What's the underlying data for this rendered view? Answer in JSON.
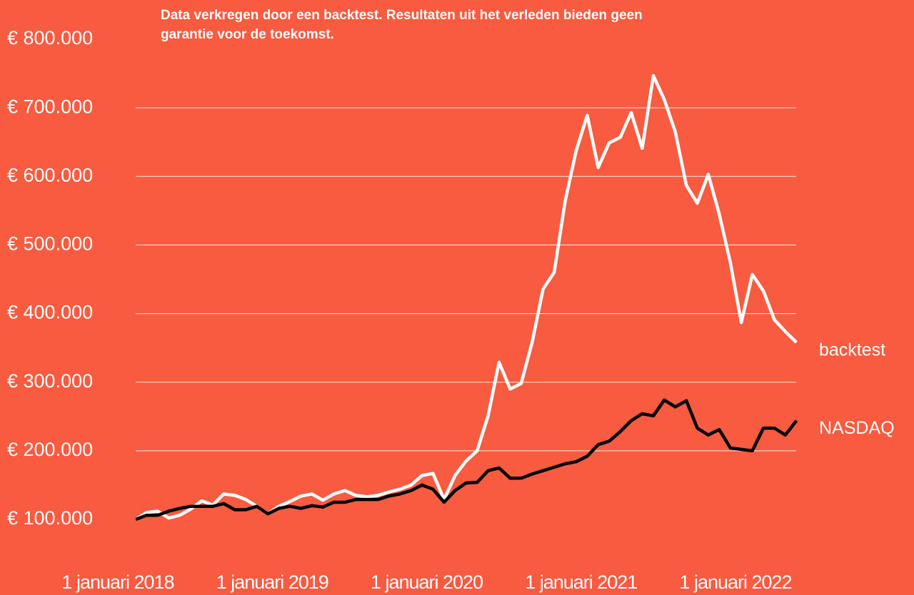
{
  "chart_data": {
    "type": "line",
    "annotation": "Data verkregen door een backtest. Resultaten uit het verleden bieden geen garantie voor de toekomst.",
    "x": [
      2018.116,
      2018.187,
      2018.258,
      2018.33,
      2018.401,
      2018.472,
      2018.544,
      2018.615,
      2018.686,
      2018.758,
      2018.829,
      2018.9,
      2018.972,
      2019.043,
      2019.114,
      2019.186,
      2019.257,
      2019.328,
      2019.399,
      2019.471,
      2019.542,
      2019.613,
      2019.685,
      2019.756,
      2019.827,
      2019.899,
      2019.97,
      2020.041,
      2020.113,
      2020.184,
      2020.255,
      2020.327,
      2020.398,
      2020.469,
      2020.541,
      2020.612,
      2020.683,
      2020.754,
      2020.826,
      2020.897,
      2020.968,
      2021.04,
      2021.111,
      2021.182,
      2021.254,
      2021.325,
      2021.396,
      2021.468,
      2021.539,
      2021.61,
      2021.682,
      2021.753,
      2021.824,
      2021.895,
      2021.967,
      2022.038,
      2022.109,
      2022.181,
      2022.252,
      2022.323,
      2022.395
    ],
    "series": [
      {
        "name": "backtest",
        "color": "#ffffff",
        "values": [
          100000,
          110000,
          112000,
          102000,
          106000,
          115000,
          127000,
          121000,
          137000,
          135000,
          129000,
          119000,
          108000,
          119000,
          126000,
          134000,
          137000,
          128000,
          137000,
          142000,
          135000,
          133000,
          135000,
          140000,
          144000,
          150000,
          164000,
          167000,
          129000,
          164000,
          185000,
          200000,
          251000,
          329000,
          290000,
          298000,
          358000,
          436000,
          460000,
          564000,
          637000,
          689000,
          613000,
          649000,
          657000,
          693000,
          641000,
          747000,
          712000,
          665000,
          587000,
          561000,
          603000,
          545000,
          474000,
          387000,
          457000,
          433000,
          391000,
          374000,
          358000
        ]
      },
      {
        "name": "NASDAQ",
        "color": "#000000",
        "values": [
          100000,
          106000,
          106000,
          112000,
          116000,
          119000,
          119000,
          119000,
          123000,
          114000,
          114000,
          119000,
          108000,
          116000,
          119000,
          116000,
          120000,
          118000,
          125000,
          125000,
          129000,
          129000,
          129000,
          134000,
          137000,
          142000,
          150000,
          144000,
          125000,
          142000,
          153000,
          154000,
          171000,
          175000,
          160000,
          160000,
          166000,
          171000,
          176000,
          181000,
          184000,
          192000,
          209000,
          214000,
          228000,
          244000,
          254000,
          251000,
          274000,
          264000,
          273000,
          233000,
          223000,
          231000,
          204000,
          202000,
          200000,
          233000,
          233000,
          223000,
          244000
        ]
      }
    ],
    "xlim": [
      2017.9,
      2022.5
    ],
    "xticks": [
      {
        "value": 2018,
        "label": "1 januari 2018"
      },
      {
        "value": 2019,
        "label": "1 januari 2019"
      },
      {
        "value": 2020,
        "label": "1 januari 2020"
      },
      {
        "value": 2021,
        "label": "1 januari 2021"
      },
      {
        "value": 2022,
        "label": "1 januari 2022"
      }
    ],
    "ylim": [
      100000,
      800000
    ],
    "yticks": [
      {
        "value": 100000,
        "label": "€ 100.000"
      },
      {
        "value": 200000,
        "label": "€ 200.000"
      },
      {
        "value": 300000,
        "label": "€ 300.000"
      },
      {
        "value": 400000,
        "label": "€ 400.000"
      },
      {
        "value": 500000,
        "label": "€ 500.000"
      },
      {
        "value": 600000,
        "label": "€ 600.000"
      },
      {
        "value": 700000,
        "label": "€ 700.000"
      },
      {
        "value": 800000,
        "label": "€ 800.000"
      }
    ],
    "grid": true,
    "background": "#f95b40"
  }
}
